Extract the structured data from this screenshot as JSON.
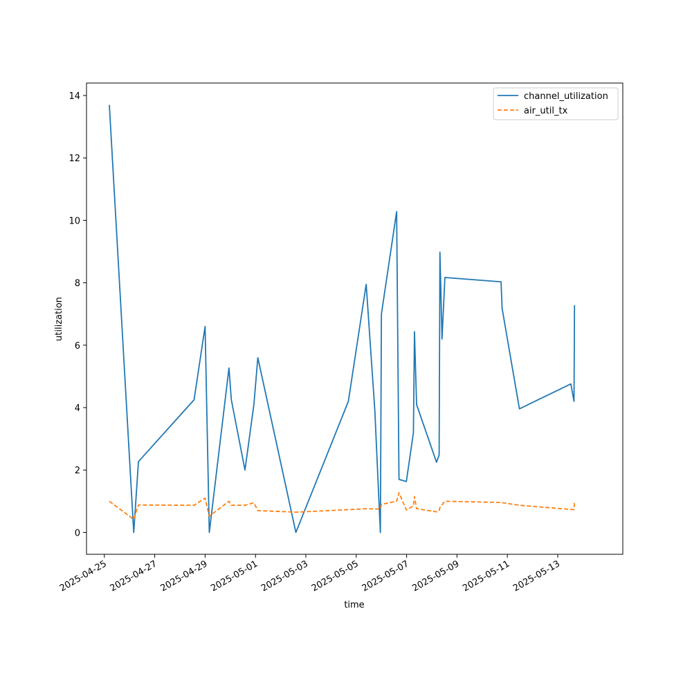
{
  "chart_data": {
    "type": "line",
    "title": "",
    "xlabel": "time",
    "ylabel": "utilization",
    "x_is_date": true,
    "xlim": [
      "2025-04-24T07:00",
      "2025-05-15T14:00"
    ],
    "ylim": [
      -0.7,
      14.4
    ],
    "x_ticks": [
      "2025-04-25",
      "2025-04-27",
      "2025-04-29",
      "2025-05-01",
      "2025-05-03",
      "2025-05-05",
      "2025-05-07",
      "2025-05-09",
      "2025-05-11",
      "2025-05-13"
    ],
    "y_ticks": [
      0,
      2,
      4,
      6,
      8,
      10,
      12,
      14
    ],
    "grid": false,
    "legend_position": "top-right",
    "series": [
      {
        "name": "channel_utilization",
        "color": "#1f77b4",
        "style": "solid",
        "points": [
          {
            "x": "2025-04-25T04:45",
            "y": 13.7
          },
          {
            "x": "2025-04-26T04:00",
            "y": 0.0
          },
          {
            "x": "2025-04-26T08:30",
            "y": 2.27
          },
          {
            "x": "2025-04-28T13:30",
            "y": 4.25
          },
          {
            "x": "2025-04-29T00:00",
            "y": 6.6
          },
          {
            "x": "2025-04-29T04:00",
            "y": 0.0
          },
          {
            "x": "2025-04-29T22:45",
            "y": 5.27
          },
          {
            "x": "2025-04-30T01:00",
            "y": 4.25
          },
          {
            "x": "2025-04-30T14:00",
            "y": 2.0
          },
          {
            "x": "2025-04-30T22:30",
            "y": 4.1
          },
          {
            "x": "2025-05-01T02:15",
            "y": 5.6
          },
          {
            "x": "2025-05-02T14:30",
            "y": 0.0
          },
          {
            "x": "2025-05-04T16:30",
            "y": 4.2
          },
          {
            "x": "2025-05-05T09:30",
            "y": 7.95
          },
          {
            "x": "2025-05-05T17:45",
            "y": 3.9
          },
          {
            "x": "2025-05-05T23:00",
            "y": 0.0
          },
          {
            "x": "2025-05-06T00:00",
            "y": 7.0
          },
          {
            "x": "2025-05-06T14:30",
            "y": 10.28
          },
          {
            "x": "2025-05-06T16:45",
            "y": 1.7
          },
          {
            "x": "2025-05-06T23:45",
            "y": 1.63
          },
          {
            "x": "2025-05-07T06:30",
            "y": 3.2
          },
          {
            "x": "2025-05-07T07:30",
            "y": 6.43
          },
          {
            "x": "2025-05-07T09:30",
            "y": 4.1
          },
          {
            "x": "2025-05-08T04:30",
            "y": 2.25
          },
          {
            "x": "2025-05-08T07:00",
            "y": 2.48
          },
          {
            "x": "2025-05-08T07:45",
            "y": 8.98
          },
          {
            "x": "2025-05-08T09:45",
            "y": 6.2
          },
          {
            "x": "2025-05-08T12:30",
            "y": 8.17
          },
          {
            "x": "2025-05-10T18:00",
            "y": 8.03
          },
          {
            "x": "2025-05-10T19:00",
            "y": 7.18
          },
          {
            "x": "2025-05-11T11:30",
            "y": 3.96
          },
          {
            "x": "2025-05-13T12:30",
            "y": 4.76
          },
          {
            "x": "2025-05-13T15:30",
            "y": 4.2
          },
          {
            "x": "2025-05-13T16:00",
            "y": 7.28
          }
        ]
      },
      {
        "name": "air_util_tx",
        "color": "#ff7f0e",
        "style": "dashed",
        "points": [
          {
            "x": "2025-04-25T04:45",
            "y": 1.0
          },
          {
            "x": "2025-04-26T04:00",
            "y": 0.42
          },
          {
            "x": "2025-04-26T08:30",
            "y": 0.88
          },
          {
            "x": "2025-04-28T13:30",
            "y": 0.87
          },
          {
            "x": "2025-04-29T00:00",
            "y": 1.1
          },
          {
            "x": "2025-04-29T04:00",
            "y": 0.52
          },
          {
            "x": "2025-04-29T22:45",
            "y": 1.0
          },
          {
            "x": "2025-04-30T01:00",
            "y": 0.87
          },
          {
            "x": "2025-04-30T14:00",
            "y": 0.87
          },
          {
            "x": "2025-04-30T22:30",
            "y": 0.95
          },
          {
            "x": "2025-05-01T02:15",
            "y": 0.7
          },
          {
            "x": "2025-05-02T14:30",
            "y": 0.65
          },
          {
            "x": "2025-05-04T16:30",
            "y": 0.73
          },
          {
            "x": "2025-05-05T09:30",
            "y": 0.76
          },
          {
            "x": "2025-05-05T23:00",
            "y": 0.75
          },
          {
            "x": "2025-05-06T00:00",
            "y": 0.9
          },
          {
            "x": "2025-05-06T14:30",
            "y": 1.0
          },
          {
            "x": "2025-05-06T16:45",
            "y": 1.27
          },
          {
            "x": "2025-05-06T23:45",
            "y": 0.72
          },
          {
            "x": "2025-05-07T06:30",
            "y": 0.85
          },
          {
            "x": "2025-05-07T07:30",
            "y": 1.15
          },
          {
            "x": "2025-05-07T09:30",
            "y": 0.76
          },
          {
            "x": "2025-05-08T04:30",
            "y": 0.66
          },
          {
            "x": "2025-05-08T07:00",
            "y": 0.7
          },
          {
            "x": "2025-05-08T07:45",
            "y": 0.8
          },
          {
            "x": "2025-05-08T12:30",
            "y": 1.0
          },
          {
            "x": "2025-05-10T18:00",
            "y": 0.96
          },
          {
            "x": "2025-05-11T11:30",
            "y": 0.87
          },
          {
            "x": "2025-05-13T15:30",
            "y": 0.73
          },
          {
            "x": "2025-05-13T16:00",
            "y": 1.0
          }
        ]
      }
    ]
  }
}
